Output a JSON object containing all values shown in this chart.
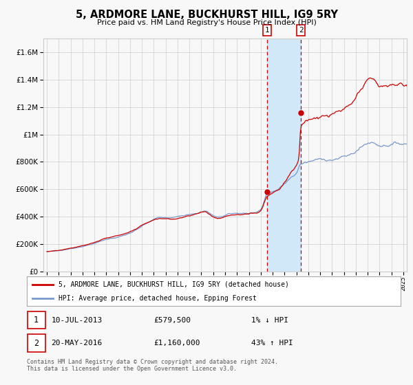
{
  "title": "5, ARDMORE LANE, BUCKHURST HILL, IG9 5RY",
  "subtitle": "Price paid vs. HM Land Registry's House Price Index (HPI)",
  "legend_line1": "5, ARDMORE LANE, BUCKHURST HILL, IG9 5RY (detached house)",
  "legend_line2": "HPI: Average price, detached house, Epping Forest",
  "transaction1_date": "10-JUL-2013",
  "transaction1_price": 579500,
  "transaction1_hpi": "1% ↓ HPI",
  "transaction1_year": 2013.53,
  "transaction2_date": "20-MAY-2016",
  "transaction2_price": 1160000,
  "transaction2_hpi": "43% ↑ HPI",
  "transaction2_year": 2016.38,
  "hpi_color": "#7799cc",
  "price_color": "#cc0000",
  "span_color": "#d0e8f8",
  "vline_color": "#cc0000",
  "grid_color": "#cccccc",
  "background_color": "#f8f8f8",
  "footer": "Contains HM Land Registry data © Crown copyright and database right 2024.\nThis data is licensed under the Open Government Licence v3.0.",
  "ylim_max": 1700000,
  "ylim_min": 0,
  "xlim_min": 1994.7,
  "xlim_max": 2025.3,
  "yticks": [
    0,
    200000,
    400000,
    600000,
    800000,
    1000000,
    1200000,
    1400000,
    1600000
  ]
}
